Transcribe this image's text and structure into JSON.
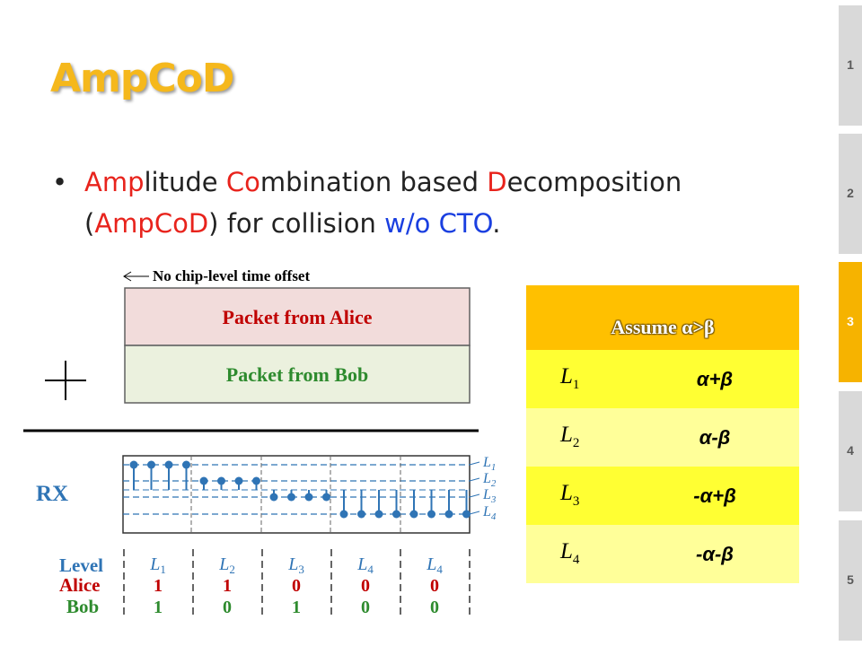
{
  "slide": {
    "title": "AmpCoD",
    "bullet_lines": [
      [
        {
          "text": "Amp",
          "color": "red"
        },
        {
          "text": "litude ",
          "color": "default"
        },
        {
          "text": "Co",
          "color": "red"
        },
        {
          "text": "mbination based ",
          "color": "default"
        },
        {
          "text": "D",
          "color": "red"
        },
        {
          "text": "ecomposition",
          "color": "default"
        }
      ],
      [
        {
          "text": "(",
          "color": "default"
        },
        {
          "text": "AmpCoD",
          "color": "red"
        },
        {
          "text": ") for collision ",
          "color": "default"
        },
        {
          "text": "w/o CTO",
          "color": "blue"
        },
        {
          "text": ".",
          "color": "default"
        }
      ]
    ]
  },
  "figure": {
    "offset_label": "No chip-level time offset",
    "packet_alice": "Packet from Alice",
    "packet_bob": "Packet from Bob",
    "rx_label": "RX",
    "level_names": [
      "L1",
      "L2",
      "L3",
      "L4"
    ],
    "row_labels": {
      "level": "Level",
      "alice": "Alice",
      "bob": "Bob"
    },
    "columns": [
      {
        "level": "L1",
        "alice": "1",
        "bob": "1"
      },
      {
        "level": "L2",
        "alice": "1",
        "bob": "0"
      },
      {
        "level": "L3",
        "alice": "0",
        "bob": "1"
      },
      {
        "level": "L4",
        "alice": "0",
        "bob": "0"
      },
      {
        "level": "L4",
        "alice": "0",
        "bob": "0"
      }
    ],
    "symbol_levels": [
      1,
      1,
      1,
      1,
      2,
      2,
      2,
      2,
      3,
      3,
      3,
      3,
      4,
      4,
      4,
      4,
      4,
      4,
      4,
      4
    ]
  },
  "table": {
    "header": "Assume α>β",
    "rows": [
      {
        "level": "L",
        "sub": "1",
        "value": "α+β"
      },
      {
        "level": "L",
        "sub": "2",
        "value": "α-β"
      },
      {
        "level": "L",
        "sub": "3",
        "value": "-α+β"
      },
      {
        "level": "L",
        "sub": "4",
        "value": "-α-β"
      }
    ]
  },
  "nav": {
    "items": [
      "1",
      "2",
      "3",
      "4",
      "5"
    ],
    "active": "3"
  },
  "colors": {
    "title": "#f5b81c",
    "accent_red": "#e8231c",
    "accent_blue": "#1a3fe0",
    "nav_active": "#f6b300",
    "nav_inactive": "#d9d9d9",
    "table_header": "#ffc000",
    "table_row_dark": "#ffff33",
    "table_row_light": "#ffff99",
    "stem_color": "#2f74b5"
  }
}
